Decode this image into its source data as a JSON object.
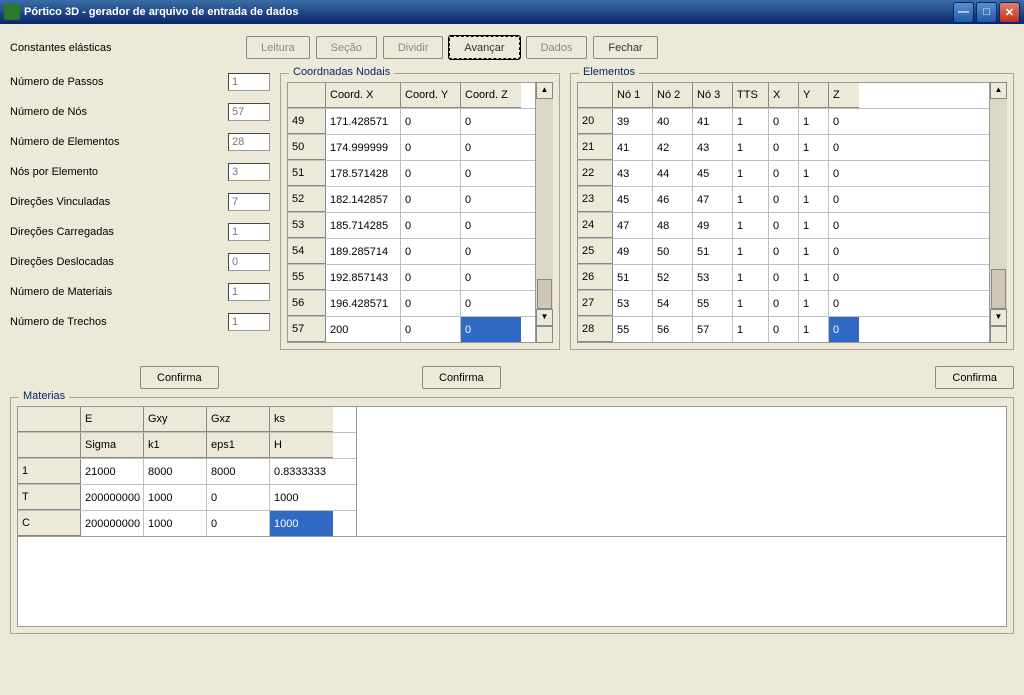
{
  "window": {
    "title": "Pórtico 3D - gerador de arquivo de entrada de dados"
  },
  "toolbar": {
    "label": "Constantes elásticas",
    "buttons": {
      "leitura": "Leitura",
      "secao": "Seção",
      "dividir": "Dividir",
      "avancar": "Avançar",
      "dados": "Dados",
      "fechar": "Fechar"
    }
  },
  "fields": {
    "passos": {
      "l": "Número de Passos",
      "v": "1"
    },
    "nos": {
      "l": "Número de Nós",
      "v": "57"
    },
    "elem": {
      "l": "Número de Elementos",
      "v": "28"
    },
    "nporel": {
      "l": "Nós por Elemento",
      "v": "3"
    },
    "dvinc": {
      "l": "Direções Vinculadas",
      "v": "7"
    },
    "dcarr": {
      "l": "Direções Carregadas",
      "v": "1"
    },
    "ddesl": {
      "l": "Direções Deslocadas",
      "v": "0"
    },
    "nmat": {
      "l": "Número de Materiais",
      "v": "1"
    },
    "ntrech": {
      "l": "Número de Trechos",
      "v": "1"
    }
  },
  "coord": {
    "title": "Coordnadas Nodais",
    "h": [
      "",
      "Coord. X",
      "Coord. Y",
      "Coord. Z"
    ],
    "rows": [
      [
        "49",
        "171.428571",
        "0",
        "0"
      ],
      [
        "50",
        "174.999999",
        "0",
        "0"
      ],
      [
        "51",
        "178.571428",
        "0",
        "0"
      ],
      [
        "52",
        "182.142857",
        "0",
        "0"
      ],
      [
        "53",
        "185.714285",
        "0",
        "0"
      ],
      [
        "54",
        "189.285714",
        "0",
        "0"
      ],
      [
        "55",
        "192.857143",
        "0",
        "0"
      ],
      [
        "56",
        "196.428571",
        "0",
        "0"
      ],
      [
        "57",
        "200",
        "0",
        "0"
      ]
    ]
  },
  "elementos": {
    "title": "Elementos",
    "h": [
      "",
      "Nó 1",
      "Nó 2",
      "Nó 3",
      "TTS",
      "X",
      "Y",
      "Z"
    ],
    "rows": [
      [
        "20",
        "39",
        "40",
        "41",
        "1",
        "0",
        "1",
        "0"
      ],
      [
        "21",
        "41",
        "42",
        "43",
        "1",
        "0",
        "1",
        "0"
      ],
      [
        "22",
        "43",
        "44",
        "45",
        "1",
        "0",
        "1",
        "0"
      ],
      [
        "23",
        "45",
        "46",
        "47",
        "1",
        "0",
        "1",
        "0"
      ],
      [
        "24",
        "47",
        "48",
        "49",
        "1",
        "0",
        "1",
        "0"
      ],
      [
        "25",
        "49",
        "50",
        "51",
        "1",
        "0",
        "1",
        "0"
      ],
      [
        "26",
        "51",
        "52",
        "53",
        "1",
        "0",
        "1",
        "0"
      ],
      [
        "27",
        "53",
        "54",
        "55",
        "1",
        "0",
        "1",
        "0"
      ],
      [
        "28",
        "55",
        "56",
        "57",
        "1",
        "0",
        "1",
        "0"
      ]
    ]
  },
  "confirma": "Confirma",
  "mat": {
    "title": "Materias",
    "h1": [
      "",
      "E",
      "Gxy",
      "Gxz",
      "ks"
    ],
    "h2": [
      "",
      "Sigma",
      "k1",
      "eps1",
      "H"
    ],
    "rows": [
      [
        "1",
        "21000",
        "8000",
        "8000",
        "0.8333333"
      ],
      [
        "T",
        "200000000",
        "1000",
        "0",
        "1000"
      ],
      [
        "C",
        "200000000",
        "1000",
        "0",
        "1000"
      ]
    ]
  },
  "colors": {
    "accent": "#316ac5",
    "bg": "#ece9d8"
  }
}
